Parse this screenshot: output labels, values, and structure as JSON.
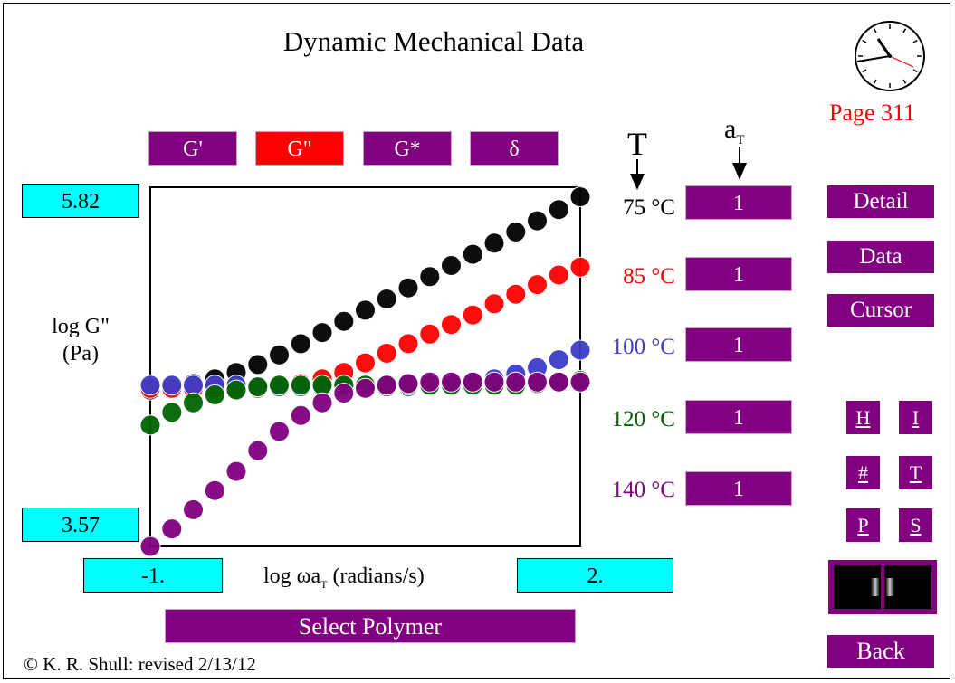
{
  "title": "Dynamic Mechanical Data",
  "page_label": "Page  311",
  "property_buttons": [
    {
      "label": "G'",
      "color": "#800080"
    },
    {
      "label": "G\"",
      "color": "#ff0000"
    },
    {
      "label": "G*",
      "color": "#800080"
    },
    {
      "label": "δ",
      "color": "#800080"
    }
  ],
  "y_axis": {
    "label_line1": "log G\"",
    "label_line2": "(Pa)",
    "max": "5.82",
    "min": "3.57"
  },
  "x_axis": {
    "label_main": "log ωa",
    "label_sub": "T",
    "label_units": " (radians/s)",
    "min": "-1.",
    "max": "2."
  },
  "column_headers": {
    "temperature": "T",
    "shift_main": "a",
    "shift_sub": "T"
  },
  "temperatures": [
    {
      "label": "75  °C",
      "color": "#000000",
      "shift": "1"
    },
    {
      "label": "85 °C",
      "color": "#ff0000",
      "shift": "1"
    },
    {
      "label": "100 °C",
      "color": "#3c3cc8",
      "shift": "1"
    },
    {
      "label": "120 °C",
      "color": "#006400",
      "shift": "1"
    },
    {
      "label": "140 °C",
      "color": "#800080",
      "shift": "1"
    }
  ],
  "side_buttons": {
    "detail": "Detail",
    "data": "Data",
    "cursor": "Cursor",
    "back": "Back"
  },
  "small_buttons": {
    "h": "H",
    "i": "I",
    "hash": "#",
    "t": "T",
    "p": "P",
    "s": "S"
  },
  "select_polymer": "Select Polymer",
  "copyright": "© K. R. Shull: revised 2/13/12",
  "chart_data": {
    "type": "scatter",
    "xlim": [
      -1,
      2
    ],
    "ylim": [
      3.57,
      5.82
    ],
    "series": [
      {
        "name": "75  °C",
        "color": "#000000",
        "x": [
          -1.0,
          -0.85,
          -0.7,
          -0.55,
          -0.4,
          -0.25,
          -0.1,
          0.05,
          0.2,
          0.35,
          0.5,
          0.65,
          0.8,
          0.95,
          1.1,
          1.25,
          1.4,
          1.55,
          1.7,
          1.85,
          2.0
        ],
        "y": [
          4.55,
          4.57,
          4.59,
          4.62,
          4.66,
          4.71,
          4.77,
          4.84,
          4.91,
          4.98,
          5.05,
          5.12,
          5.19,
          5.26,
          5.33,
          5.4,
          5.47,
          5.54,
          5.61,
          5.68,
          5.76
        ]
      },
      {
        "name": "85 °C",
        "color": "#ff0000",
        "x": [
          -1.0,
          -0.85,
          -0.7,
          -0.55,
          -0.4,
          -0.25,
          -0.1,
          0.05,
          0.2,
          0.35,
          0.5,
          0.65,
          0.8,
          0.95,
          1.1,
          1.25,
          1.4,
          1.55,
          1.7,
          1.85,
          2.0
        ],
        "y": [
          4.56,
          4.56,
          4.56,
          4.56,
          4.56,
          4.56,
          4.57,
          4.59,
          4.62,
          4.66,
          4.72,
          4.78,
          4.84,
          4.9,
          4.96,
          5.02,
          5.09,
          5.15,
          5.21,
          5.27,
          5.32
        ]
      },
      {
        "name": "100 °C",
        "color": "#3c3cc8",
        "x": [
          -1.0,
          -0.85,
          -0.7,
          -0.55,
          -0.4,
          -0.25,
          -0.1,
          0.05,
          0.2,
          0.35,
          0.5,
          0.65,
          0.8,
          0.95,
          1.1,
          1.25,
          1.4,
          1.55,
          1.7,
          1.85,
          2.0
        ],
        "y": [
          4.58,
          4.58,
          4.58,
          4.58,
          4.58,
          4.57,
          4.57,
          4.57,
          4.57,
          4.57,
          4.57,
          4.57,
          4.57,
          4.58,
          4.59,
          4.6,
          4.62,
          4.65,
          4.69,
          4.74,
          4.8
        ]
      },
      {
        "name": "120 °C",
        "color": "#006400",
        "x": [
          -1.0,
          -0.85,
          -0.7,
          -0.55,
          -0.4,
          -0.25,
          -0.1,
          0.05,
          0.2,
          0.35,
          0.5,
          0.65,
          0.8,
          0.95,
          1.1,
          1.25,
          1.4,
          1.55,
          1.7,
          1.85,
          2.0
        ],
        "y": [
          4.33,
          4.41,
          4.47,
          4.52,
          4.55,
          4.57,
          4.58,
          4.58,
          4.58,
          4.58,
          4.58,
          4.58,
          4.58,
          4.58,
          4.58,
          4.58,
          4.58,
          4.58,
          4.59,
          4.6,
          4.61
        ]
      },
      {
        "name": "140 °C",
        "color": "#800080",
        "x": [
          -1.0,
          -0.85,
          -0.7,
          -0.55,
          -0.4,
          -0.25,
          -0.1,
          0.05,
          0.2,
          0.35,
          0.5,
          0.65,
          0.8,
          0.95,
          1.1,
          1.25,
          1.4,
          1.55,
          1.7,
          1.85,
          2.0
        ],
        "y": [
          3.57,
          3.68,
          3.8,
          3.92,
          4.04,
          4.17,
          4.29,
          4.39,
          4.47,
          4.53,
          4.56,
          4.58,
          4.59,
          4.6,
          4.6,
          4.6,
          4.6,
          4.6,
          4.6,
          4.6,
          4.6
        ]
      }
    ]
  }
}
